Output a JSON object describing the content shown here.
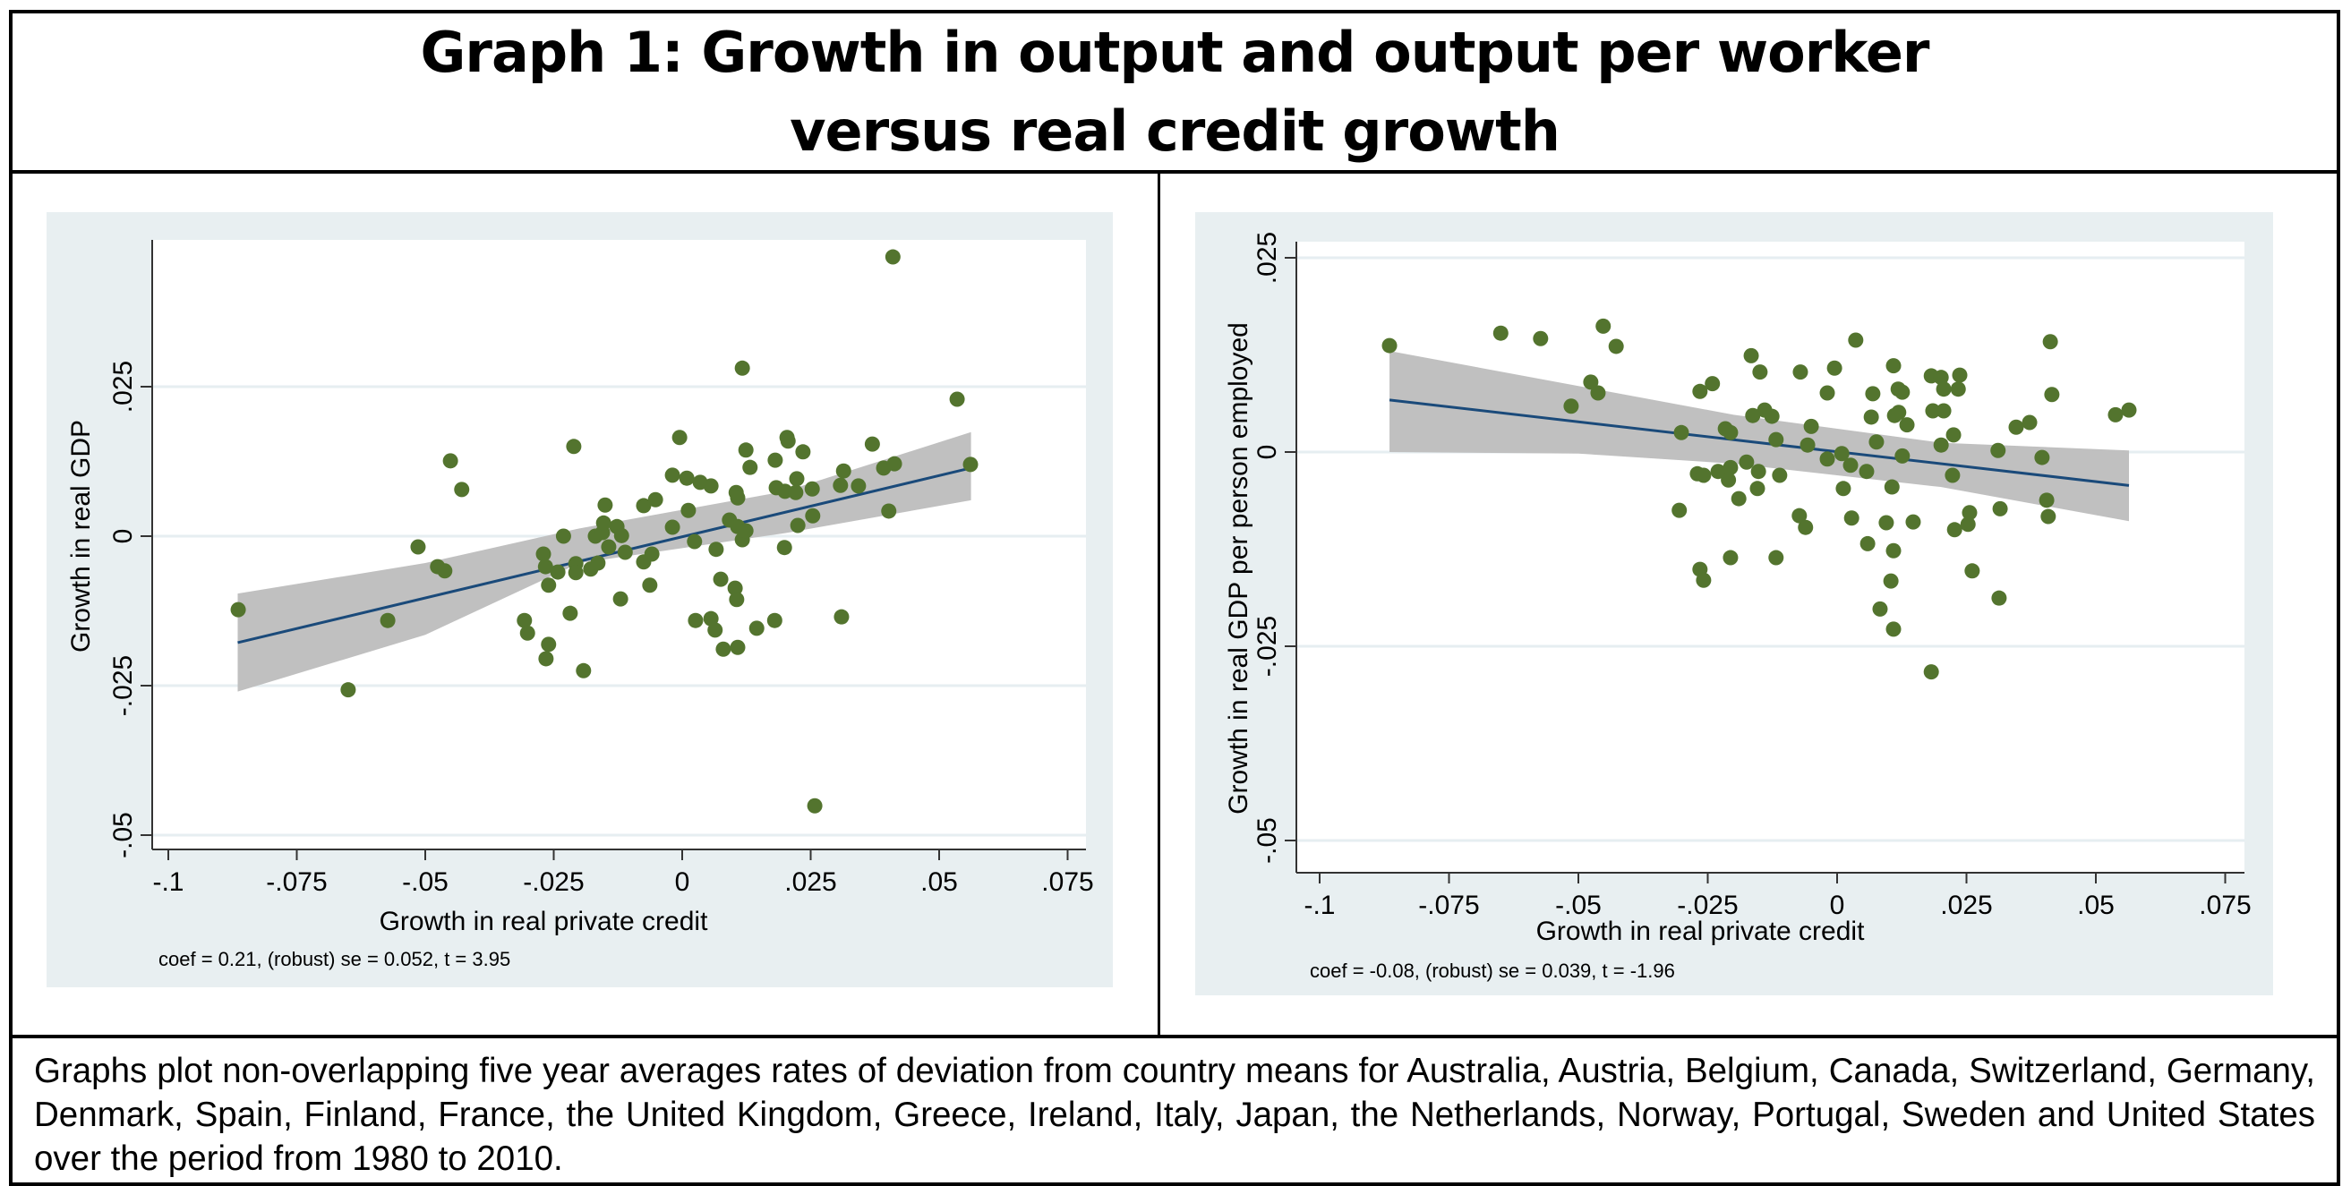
{
  "title": {
    "line1": "Graph 1: Growth in output and output per worker",
    "line2": "versus real credit growth"
  },
  "caption": "Graphs plot non-overlapping five year averages rates of deviation from country means for Australia, Austria, Belgium, Canada, Switzerland, Germany, Denmark, Spain, Finland, France, the United Kingdom, Greece, Ireland, Italy, Japan, the Netherlands, Norway, Portugal, Sweden and United States over the period from 1980 to 2010.",
  "colors": {
    "panel_bg": "#e8eff1",
    "plot_bg": "#ffffff",
    "gridline": "#e6eef1",
    "marker": "#53742e",
    "fit_line": "#1a4a7a",
    "ci_band": "#c0c0c0"
  },
  "chart_data": [
    {
      "type": "scatter",
      "title": "",
      "xlabel": "Growth in real private credit",
      "ylabel": "Growth in real GDP",
      "xlim": [
        -0.1,
        0.075
      ],
      "ylim": [
        -0.05,
        0.025
      ],
      "xticks": [
        -0.1,
        -0.075,
        -0.05,
        -0.025,
        0,
        0.025,
        0.05,
        0.075
      ],
      "xtick_labels": [
        "-.1",
        "-.075",
        "-.05",
        "-.025",
        "0",
        ".025",
        ".05",
        ".075"
      ],
      "yticks": [
        -0.05,
        -0.025,
        0,
        0.025
      ],
      "ytick_labels": [
        "-.05",
        "-.025",
        "0",
        ".025"
      ],
      "grid": true,
      "note": "coef = 0.21,  (robust)  se = 0.052,  t = 3.95",
      "fit": {
        "x": [
          -0.0865,
          0.0562
        ],
        "y": [
          -0.0178,
          0.0114
        ],
        "ci_upper": [
          -0.0096,
          -0.0045,
          0.0013,
          0.0075,
          0.0174
        ],
        "ci_lower": [
          -0.026,
          -0.0165,
          -0.0045,
          0.0005,
          0.006
        ],
        "ci_x": [
          -0.0865,
          -0.05,
          -0.02,
          0.02,
          0.0562
        ]
      },
      "points": [
        [
          -0.0864,
          -0.0123
        ],
        [
          -0.065,
          -0.0257
        ],
        [
          -0.0573,
          -0.0141
        ],
        [
          -0.0514,
          -0.0018
        ],
        [
          -0.0476,
          -0.0051
        ],
        [
          -0.0462,
          -0.0058
        ],
        [
          -0.0451,
          0.0126
        ],
        [
          -0.0429,
          0.0078
        ],
        [
          -0.0307,
          -0.0141
        ],
        [
          -0.0301,
          -0.0162
        ],
        [
          -0.027,
          -0.003
        ],
        [
          -0.0266,
          -0.0051
        ],
        [
          -0.026,
          -0.0082
        ],
        [
          -0.026,
          -0.0181
        ],
        [
          -0.0265,
          -0.0205
        ],
        [
          -0.0242,
          -0.006
        ],
        [
          -0.0231,
          0.0
        ],
        [
          -0.0218,
          -0.0129
        ],
        [
          -0.0211,
          0.015
        ],
        [
          -0.0207,
          -0.0046
        ],
        [
          -0.0207,
          -0.0061
        ],
        [
          -0.0192,
          -0.0225
        ],
        [
          -0.0178,
          -0.0055
        ],
        [
          -0.0164,
          -0.0045
        ],
        [
          -0.0169,
          0.0
        ],
        [
          -0.0155,
          0.0006
        ],
        [
          -0.0153,
          0.0022
        ],
        [
          -0.015,
          0.0052
        ],
        [
          -0.0143,
          -0.0018
        ],
        [
          -0.0127,
          0.0016
        ],
        [
          -0.012,
          -0.0105
        ],
        [
          -0.0118,
          0.0001
        ],
        [
          -0.0111,
          -0.0027
        ],
        [
          -0.0075,
          0.0051
        ],
        [
          -0.0075,
          -0.0043
        ],
        [
          -0.0063,
          -0.0082
        ],
        [
          -0.0059,
          -0.003
        ],
        [
          -0.0052,
          0.0061
        ],
        [
          -0.0005,
          0.0165
        ],
        [
          -0.0019,
          0.0102
        ],
        [
          -0.0019,
          0.0015
        ],
        [
          0.0009,
          0.0097
        ],
        [
          0.0012,
          0.0043
        ],
        [
          0.0024,
          -0.0009
        ],
        [
          0.0026,
          -0.0141
        ],
        [
          0.0035,
          0.009
        ],
        [
          0.0056,
          0.0084
        ],
        [
          0.0056,
          -0.0138
        ],
        [
          0.0064,
          -0.0157
        ],
        [
          0.0066,
          -0.0022
        ],
        [
          0.0075,
          -0.0072
        ],
        [
          0.008,
          -0.0189
        ],
        [
          0.0092,
          0.0027
        ],
        [
          0.0103,
          -0.0087
        ],
        [
          0.0105,
          0.0073
        ],
        [
          0.0106,
          -0.0106
        ],
        [
          0.0108,
          0.0064
        ],
        [
          0.0108,
          0.0016
        ],
        [
          0.0108,
          -0.0186
        ],
        [
          0.0117,
          0.0281
        ],
        [
          0.0117,
          -0.0006
        ],
        [
          0.0124,
          0.0144
        ],
        [
          0.0124,
          0.0009
        ],
        [
          0.0132,
          0.0115
        ],
        [
          0.0145,
          -0.0154
        ],
        [
          0.018,
          -0.0141
        ],
        [
          0.0181,
          0.0127
        ],
        [
          0.0183,
          0.0081
        ],
        [
          0.0199,
          -0.0019
        ],
        [
          0.02,
          0.0075
        ],
        [
          0.0204,
          0.0165
        ],
        [
          0.0206,
          0.0159
        ],
        [
          0.0221,
          0.0073
        ],
        [
          0.0223,
          0.0096
        ],
        [
          0.0225,
          0.0018
        ],
        [
          0.0235,
          0.0141
        ],
        [
          0.0253,
          0.0079
        ],
        [
          0.0254,
          0.0034
        ],
        [
          0.0258,
          -0.0451
        ],
        [
          0.0308,
          0.0085
        ],
        [
          0.031,
          -0.0135
        ],
        [
          0.0314,
          0.0109
        ],
        [
          0.0343,
          0.0084
        ],
        [
          0.037,
          0.0154
        ],
        [
          0.0392,
          0.0114
        ],
        [
          0.0402,
          0.0042
        ],
        [
          0.041,
          0.0467
        ],
        [
          0.0413,
          0.0121
        ],
        [
          0.0535,
          0.0229
        ],
        [
          0.0561,
          0.012
        ]
      ]
    },
    {
      "type": "scatter",
      "title": "",
      "xlabel": "Growth in real private credit",
      "ylabel": "Growth in real GDP per person employed",
      "xlim": [
        -0.1,
        0.075
      ],
      "ylim": [
        -0.05,
        0.025
      ],
      "xticks": [
        -0.1,
        -0.075,
        -0.05,
        -0.025,
        0,
        0.025,
        0.05,
        0.075
      ],
      "xtick_labels": [
        "-.1",
        "-.075",
        "-.05",
        "-.025",
        "0",
        ".025",
        ".05",
        ".075"
      ],
      "yticks": [
        -0.05,
        -0.025,
        0,
        0.025
      ],
      "ytick_labels": [
        "-.05",
        "-.025",
        "0",
        ".025"
      ],
      "grid": true,
      "note": "coef = -0.08,  (robust)  se = 0.039,  t = -1.96",
      "fit": {
        "x": [
          -0.0865,
          0.0564
        ],
        "y": [
          0.0067,
          -0.0043
        ],
        "ci_upper": [
          0.013,
          0.0085,
          0.0048,
          0.0012,
          0.0002
        ],
        "ci_lower": [
          0.0,
          -0.0002,
          -0.0015,
          -0.0045,
          -0.0089
        ],
        "ci_x": [
          -0.0865,
          -0.05,
          -0.02,
          0.02,
          0.0564
        ]
      },
      "points": [
        [
          -0.0865,
          0.0137
        ],
        [
          -0.065,
          0.0153
        ],
        [
          -0.0573,
          0.0146
        ],
        [
          -0.0514,
          0.0059
        ],
        [
          -0.0476,
          0.009
        ],
        [
          -0.0462,
          0.0076
        ],
        [
          -0.0452,
          0.0162
        ],
        [
          -0.0427,
          0.0136
        ],
        [
          -0.0305,
          -0.0075
        ],
        [
          -0.0301,
          0.0025
        ],
        [
          -0.027,
          -0.0028
        ],
        [
          -0.0265,
          0.0078
        ],
        [
          -0.0265,
          -0.0151
        ],
        [
          -0.0258,
          -0.003
        ],
        [
          -0.0258,
          -0.0165
        ],
        [
          -0.0241,
          0.0088
        ],
        [
          -0.023,
          -0.0025
        ],
        [
          -0.0216,
          0.003
        ],
        [
          -0.0206,
          0.0025
        ],
        [
          -0.0206,
          -0.002
        ],
        [
          -0.021,
          -0.0036
        ],
        [
          -0.0206,
          -0.0136
        ],
        [
          -0.019,
          -0.006
        ],
        [
          -0.0175,
          -0.0013
        ],
        [
          -0.0166,
          0.0124
        ],
        [
          -0.0163,
          0.0047
        ],
        [
          -0.0154,
          -0.0047
        ],
        [
          -0.0152,
          -0.0025
        ],
        [
          -0.0149,
          0.0103
        ],
        [
          -0.014,
          0.0054
        ],
        [
          -0.0126,
          0.0046
        ],
        [
          -0.0118,
          0.0016
        ],
        [
          -0.0118,
          -0.0136
        ],
        [
          -0.0111,
          -0.003
        ],
        [
          -0.0073,
          -0.0082
        ],
        [
          -0.0071,
          0.0103
        ],
        [
          -0.0061,
          -0.0097
        ],
        [
          -0.0057,
          0.0009
        ],
        [
          -0.005,
          0.0033
        ],
        [
          -0.0019,
          0.0076
        ],
        [
          -0.0019,
          -0.0009
        ],
        [
          -0.0005,
          0.0108
        ],
        [
          0.0009,
          -0.0002
        ],
        [
          0.0012,
          -0.0047
        ],
        [
          0.0026,
          -0.0017
        ],
        [
          0.0028,
          -0.0085
        ],
        [
          0.0036,
          0.0144
        ],
        [
          0.0057,
          -0.0025
        ],
        [
          0.0059,
          -0.0118
        ],
        [
          0.0066,
          0.0045
        ],
        [
          0.0069,
          0.0075
        ],
        [
          0.0076,
          0.0013
        ],
        [
          0.0083,
          -0.0202
        ],
        [
          0.0095,
          -0.0091
        ],
        [
          0.0104,
          -0.0166
        ],
        [
          0.0106,
          -0.0045
        ],
        [
          0.0109,
          0.0111
        ],
        [
          0.0109,
          -0.0127
        ],
        [
          0.0109,
          -0.0228
        ],
        [
          0.0111,
          0.0047
        ],
        [
          0.0118,
          0.0081
        ],
        [
          0.0119,
          0.0051
        ],
        [
          0.0126,
          0.0077
        ],
        [
          0.0126,
          -0.0005
        ],
        [
          0.0135,
          0.0035
        ],
        [
          0.0147,
          -0.009
        ],
        [
          0.0182,
          0.0098
        ],
        [
          0.0182,
          -0.0283
        ],
        [
          0.0185,
          0.0053
        ],
        [
          0.0201,
          0.0096
        ],
        [
          0.0201,
          0.0009
        ],
        [
          0.0206,
          0.0081
        ],
        [
          0.0206,
          0.0053
        ],
        [
          0.0223,
          -0.003
        ],
        [
          0.0225,
          0.0022
        ],
        [
          0.0227,
          -0.01
        ],
        [
          0.0234,
          0.0081
        ],
        [
          0.0237,
          0.0099
        ],
        [
          0.0253,
          -0.0093
        ],
        [
          0.0256,
          -0.0078
        ],
        [
          0.0261,
          -0.0153
        ],
        [
          0.0311,
          0.0002
        ],
        [
          0.0313,
          -0.0188
        ],
        [
          0.0315,
          -0.0073
        ],
        [
          0.0346,
          0.0032
        ],
        [
          0.0372,
          0.0038
        ],
        [
          0.0396,
          -0.0007
        ],
        [
          0.0405,
          -0.0062
        ],
        [
          0.0408,
          -0.0083
        ],
        [
          0.0412,
          0.0142
        ],
        [
          0.0415,
          0.0074
        ],
        [
          0.0538,
          0.0048
        ],
        [
          0.0564,
          0.0054
        ]
      ]
    }
  ]
}
